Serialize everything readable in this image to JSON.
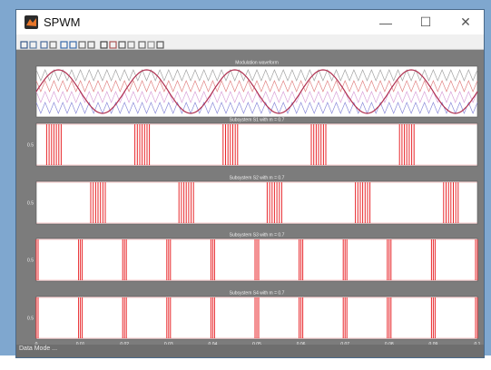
{
  "window": {
    "title": "SPWM",
    "minimize_glyph": "—",
    "maximize_glyph": "☐",
    "close_glyph": "✕"
  },
  "toolbar": {
    "icons": [
      "new-figure-icon",
      "open-icon",
      "save-icon",
      "print-icon",
      "zoom-in-icon",
      "zoom-out-icon",
      "pan-icon",
      "rotate-icon",
      "data-cursor-icon",
      "brush-icon",
      "link-icon",
      "colorbar-icon",
      "legend-icon",
      "grid-icon",
      "edit-plot-icon"
    ]
  },
  "figure": {
    "background": "#7c7c7c",
    "axes_background": "#ffffff",
    "signal_color": "#e8262a",
    "carrier_colors": [
      "#a0a0a0",
      "#e08080",
      "#d8a0d8",
      "#8888d8"
    ]
  },
  "status": {
    "text": "Data Mode ..."
  },
  "chart_data": [
    {
      "type": "line",
      "title": "Modulation waveform",
      "series": [
        {
          "kind": "sine",
          "cycles": 5,
          "amplitude": 1,
          "values_note": ""
        }
      ],
      "carriers": 4,
      "ylim": [
        -1,
        1
      ],
      "xlim": [
        0,
        0.1
      ]
    },
    {
      "type": "line",
      "title": "Subsystem S1 with m = 0.7",
      "ytick": "0.5",
      "pulse_groups": [
        0.04,
        0.24,
        0.44,
        0.64,
        0.84
      ],
      "ylim": [
        0,
        1
      ]
    },
    {
      "type": "line",
      "title": "Subsystem S2 with m = 0.7",
      "ytick": "0.5",
      "pulse_groups": [
        0.14,
        0.34,
        0.54,
        0.74,
        0.94
      ],
      "ylim": [
        0,
        1
      ]
    },
    {
      "type": "line",
      "title": "Subsystem S3 with m = 0.7",
      "ytick": "0.5",
      "pulse_groups": [
        0.0,
        0.1,
        0.2,
        0.3,
        0.4,
        0.5,
        0.6,
        0.7,
        0.8,
        0.9,
        1.0
      ],
      "ylim": [
        0,
        1
      ]
    },
    {
      "type": "line",
      "title": "Subsystem S4 with m = 0.7",
      "ytick": "0.5",
      "pulse_groups": [
        0.0,
        0.1,
        0.2,
        0.3,
        0.4,
        0.5,
        0.6,
        0.7,
        0.8,
        0.9,
        1.0
      ],
      "ylim": [
        0,
        1
      ]
    }
  ],
  "x_ticks": [
    "0",
    "0.01",
    "0.02",
    "0.03",
    "0.04",
    "0.05",
    "0.06",
    "0.07",
    "0.08",
    "0.09",
    "0.1"
  ]
}
